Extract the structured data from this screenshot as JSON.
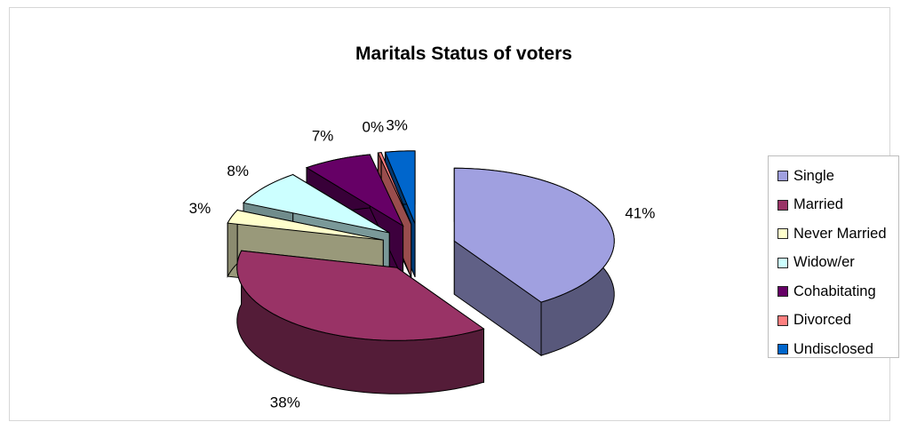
{
  "chart_data": {
    "type": "pie",
    "title": "Maritals Status of voters",
    "legend_position": "right",
    "categories": [
      "Single",
      "Married",
      "Never Married",
      "Widow/er",
      "Cohabitating",
      "Divorced",
      "Undisclosed"
    ],
    "values": [
      41,
      38,
      3,
      8,
      7,
      0,
      3
    ],
    "labels": [
      "41%",
      "38%",
      "3%",
      "8%",
      "7%",
      "0%",
      "3%"
    ],
    "colors": {
      "Single": "#a0a0e0",
      "Married": "#993366",
      "Never Married": "#ffffcc",
      "Widow/er": "#ccffff",
      "Cohabitating": "#660066",
      "Divorced": "#ff8080",
      "Undisclosed": "#0066cc"
    }
  }
}
